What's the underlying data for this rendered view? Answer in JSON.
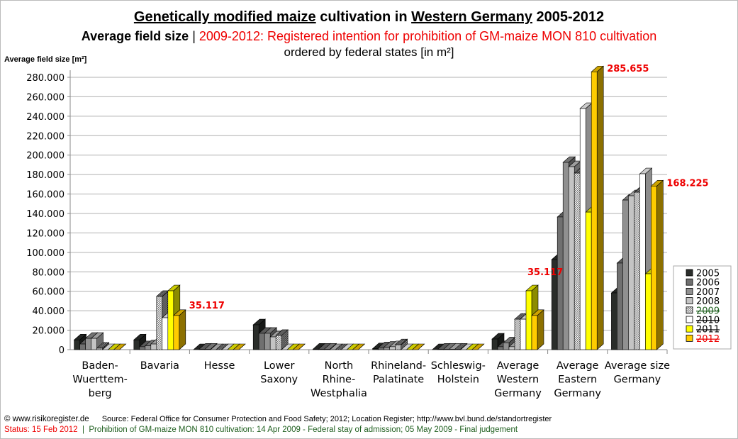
{
  "title": {
    "part1": "Genetically modified maize",
    "part2": " cultivation in ",
    "part3": "Western Germany",
    "part4": " 2005-2012"
  },
  "subtitle": {
    "black": "Average field size",
    "sep": " | ",
    "red": "2009-2012: Registered intention for prohibition of GM-maize MON 810 cultivation"
  },
  "subtitle2": "ordered by federal states [in m²]",
  "footer": {
    "copyright": "© www.risikoregister.de",
    "source": "Source: Federal Office for Consumer Protection and Food Safety; 2012; Location Register; http://www.bvl.bund.de/standortregister",
    "status": "Status: 15 Feb 2012",
    "sep": "  |  ",
    "prohibition": "Prohibition of GM-maize MON 810 cultivation: 14 Apr 2009 - Federal stay of admission; 05 May 2009 - Final judgement"
  },
  "chart_data": {
    "type": "bar",
    "style": "3d-clustered",
    "ylabel": "Average field size [m²]",
    "ylim": [
      0,
      280000
    ],
    "yticks": [
      "0",
      "20.000",
      "40.000",
      "60.000",
      "80.000",
      "100.000",
      "120.000",
      "140.000",
      "160.000",
      "180.000",
      "200.000",
      "220.000",
      "240.000",
      "260.000",
      "280.000"
    ],
    "grid": true,
    "legend_position": "right",
    "categories": [
      [
        "Baden-",
        "Wuerttem-",
        "berg"
      ],
      [
        "Bavaria"
      ],
      [
        "Hesse"
      ],
      [
        "Lower",
        "Saxony"
      ],
      [
        "North",
        "Rhine-",
        "Westphalia"
      ],
      [
        "Rhineland-",
        "Palatinate"
      ],
      [
        "Schleswig-",
        "Holstein"
      ],
      [
        "Average",
        "Western",
        "Germany"
      ],
      [
        "Average",
        "Eastern",
        "Germany"
      ],
      [
        "Average size",
        "Germany"
      ]
    ],
    "series": [
      {
        "name": "2005",
        "color": "#2a2d2a",
        "label_color": "#000",
        "strike": false,
        "values": [
          10000,
          10000,
          0,
          25500,
          500,
          1000,
          0,
          10900,
          92600,
          58300
        ]
      },
      {
        "name": "2006",
        "color": "#707070",
        "label_color": "#000",
        "strike": false,
        "values": [
          5800,
          3000,
          500,
          16800,
          500,
          2000,
          500,
          3000,
          136400,
          89000
        ]
      },
      {
        "name": "2007",
        "color": "#909090",
        "label_color": "#000",
        "strike": false,
        "values": [
          11600,
          4000,
          500,
          16800,
          500,
          2500,
          500,
          7000,
          192500,
          153800
        ]
      },
      {
        "name": "2008",
        "color": "#c4c4c4",
        "label_color": "#000",
        "strike": false,
        "values": [
          11600,
          5800,
          0,
          13100,
          0,
          3000,
          500,
          3000,
          188100,
          158200
        ]
      },
      {
        "name": "2009",
        "color": "pattern",
        "label_color": "#1f5f1f",
        "strike": true,
        "values": [
          1500,
          54700,
          0,
          14600,
          0,
          5000,
          500,
          31300,
          181500,
          161800
        ]
      },
      {
        "name": "2010",
        "color": "#ffffff",
        "label_color": "#000",
        "strike": true,
        "values": [
          0,
          32800,
          0,
          0,
          0,
          0,
          0,
          31300,
          247900,
          180800
        ]
      },
      {
        "name": "2011",
        "color": "#ffff00",
        "label_color": "#000",
        "strike": true,
        "values": [
          0,
          60500,
          0,
          0,
          0,
          0,
          0,
          60500,
          141400,
          78000
        ]
      },
      {
        "name": "2012",
        "color": "#ffcc00",
        "label_color": "#e00",
        "strike": true,
        "values": [
          0,
          35117,
          0,
          0,
          0,
          0,
          0,
          35117,
          285655,
          168225
        ]
      }
    ],
    "annotations": [
      {
        "category": 1,
        "text": "35.117"
      },
      {
        "category": 7,
        "text": "35.117"
      },
      {
        "category": 8,
        "text": "285.655"
      },
      {
        "category": 9,
        "text": "168.225"
      }
    ]
  }
}
